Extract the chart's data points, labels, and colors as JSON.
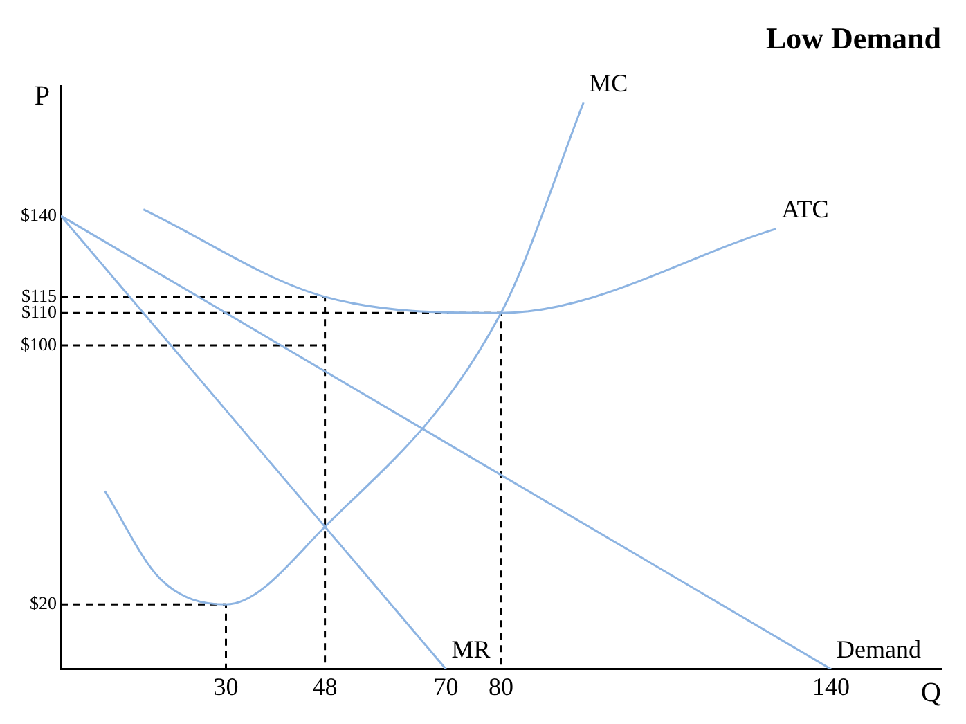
{
  "chart_data": {
    "type": "line",
    "title": "Low Demand",
    "xlabel": "Q",
    "ylabel": "P",
    "xlim": [
      0,
      160
    ],
    "ylim": [
      0,
      180
    ],
    "xticks": [
      30,
      48,
      70,
      80,
      140
    ],
    "yticks": [
      {
        "value": 20,
        "label": "$20"
      },
      {
        "value": 100,
        "label": "$100"
      },
      {
        "value": 110,
        "label": "$110"
      },
      {
        "value": 115,
        "label": "$115"
      },
      {
        "value": 140,
        "label": "$140"
      }
    ],
    "grid": false,
    "legend": false,
    "marker": "none",
    "series": [
      {
        "name": "MC",
        "color": "#8db4e2",
        "x": [
          8,
          18,
          30,
          48,
          80,
          95
        ],
        "values": [
          55,
          28,
          20,
          44,
          110,
          175
        ]
      },
      {
        "name": "ATC",
        "color": "#8db4e2",
        "x": [
          15,
          48,
          80,
          130
        ],
        "values": [
          142,
          115,
          110,
          136
        ]
      },
      {
        "name": "MR",
        "color": "#8db4e2",
        "x": [
          0,
          70
        ],
        "values": [
          140,
          0
        ]
      },
      {
        "name": "Demand",
        "color": "#8db4e2",
        "x": [
          0,
          140
        ],
        "values": [
          140,
          0
        ]
      },
      {
        "color": "#000000",
        "line_style": "dashed",
        "x": [
          0,
          48,
          48
        ],
        "values": [
          115,
          115,
          0
        ]
      },
      {
        "color": "#000000",
        "line_style": "dashed",
        "x": [
          0,
          48
        ],
        "values": [
          100,
          100
        ]
      },
      {
        "color": "#000000",
        "line_style": "dashed",
        "x": [
          0,
          80,
          80
        ],
        "values": [
          110,
          110,
          0
        ]
      },
      {
        "color": "#000000",
        "line_style": "dashed",
        "x": [
          0,
          30,
          30
        ],
        "values": [
          20,
          20,
          0
        ]
      }
    ]
  }
}
